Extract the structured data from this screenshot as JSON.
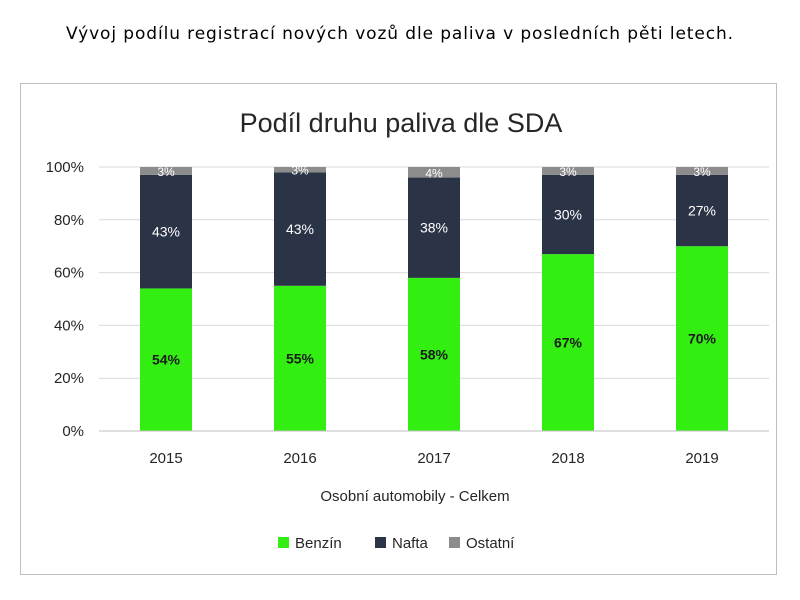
{
  "caption": "Vývoj podílu registrací nových vozů dle paliva v posledních pěti letech.",
  "chart_data": {
    "type": "bar",
    "stacked": true,
    "title": "Podíl druhu paliva dle SDA",
    "xlabel": "Osobní automobily - Celkem",
    "ylabel": "",
    "ylim": [
      0,
      100
    ],
    "yticks": [
      "0%",
      "20%",
      "40%",
      "60%",
      "80%",
      "100%"
    ],
    "categories": [
      "2015",
      "2016",
      "2017",
      "2018",
      "2019"
    ],
    "series": [
      {
        "name": "Benzín",
        "color": "#33ee11",
        "values": [
          54,
          55,
          58,
          67,
          70
        ],
        "labels": [
          "54%",
          "55%",
          "58%",
          "67%",
          "70%"
        ]
      },
      {
        "name": "Nafta",
        "color": "#2b3447",
        "values": [
          43,
          43,
          38,
          30,
          27
        ],
        "labels": [
          "43%",
          "43%",
          "38%",
          "30%",
          "27%"
        ]
      },
      {
        "name": "Ostatní",
        "color": "#8c8c8c",
        "values": [
          3,
          3,
          4,
          3,
          3
        ],
        "labels": [
          "3%",
          "3%",
          "4%",
          "3%",
          "3%"
        ]
      }
    ],
    "grid": true,
    "legend_position": "bottom"
  }
}
